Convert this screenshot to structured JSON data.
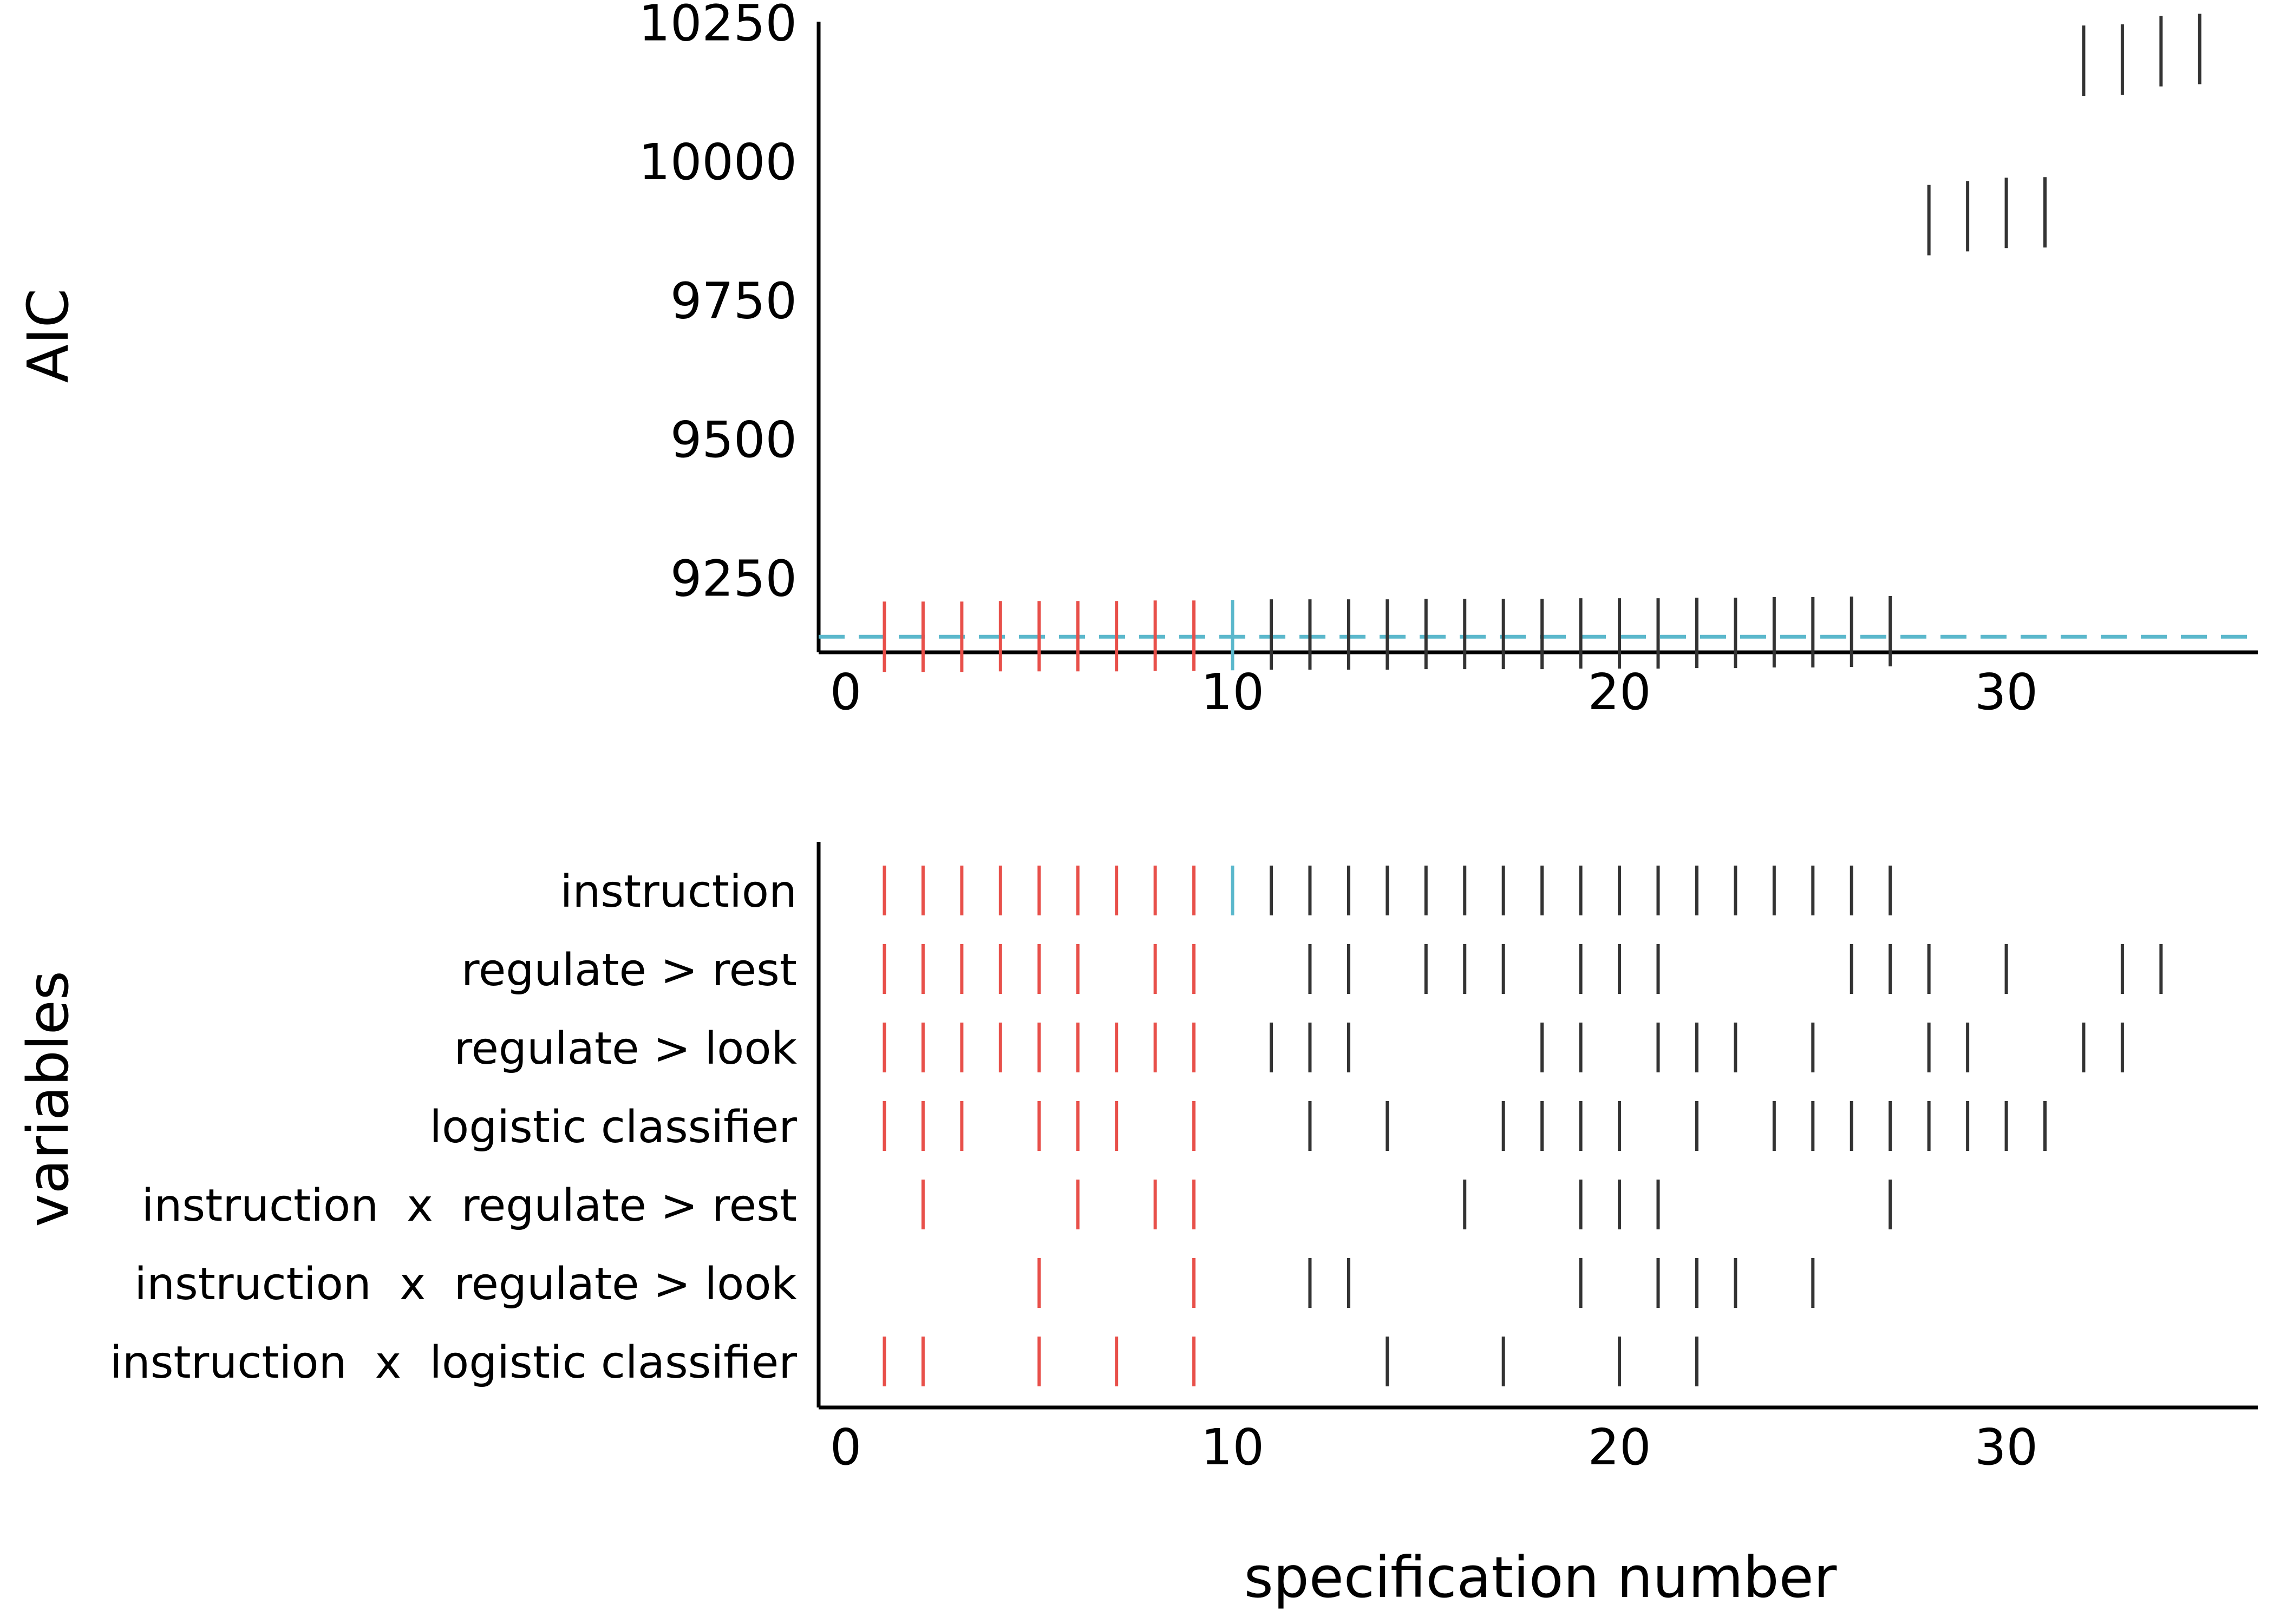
{
  "colors": {
    "red": "#e8504a",
    "blue": "#5bb8cc",
    "black": "#333333",
    "axis": "#000000"
  },
  "chart_data": [
    {
      "type": "scatter",
      "mark": "tick",
      "ylabel": "AIC",
      "xlim": [
        -0.7,
        36.5
      ],
      "ylim": [
        9115,
        10260
      ],
      "xticks": [
        "0",
        "10",
        "20",
        "30"
      ],
      "yticks": [
        "9250",
        "9500",
        "9750",
        "10000",
        "10250"
      ],
      "reference_line": {
        "y": 9143,
        "style": "dashed",
        "color": "#5bb8cc"
      },
      "points": [
        {
          "x": 1,
          "y": 9143,
          "group": "red"
        },
        {
          "x": 2,
          "y": 9143,
          "group": "red"
        },
        {
          "x": 3,
          "y": 9143,
          "group": "red"
        },
        {
          "x": 4,
          "y": 9144,
          "group": "red"
        },
        {
          "x": 5,
          "y": 9144,
          "group": "red"
        },
        {
          "x": 6,
          "y": 9144,
          "group": "red"
        },
        {
          "x": 7,
          "y": 9144,
          "group": "red"
        },
        {
          "x": 8,
          "y": 9145,
          "group": "red"
        },
        {
          "x": 9,
          "y": 9145,
          "group": "red"
        },
        {
          "x": 10,
          "y": 9146,
          "group": "blue"
        },
        {
          "x": 11,
          "y": 9147,
          "group": "black"
        },
        {
          "x": 12,
          "y": 9147,
          "group": "black"
        },
        {
          "x": 13,
          "y": 9147,
          "group": "black"
        },
        {
          "x": 14,
          "y": 9147,
          "group": "black"
        },
        {
          "x": 15,
          "y": 9148,
          "group": "black"
        },
        {
          "x": 16,
          "y": 9148,
          "group": "black"
        },
        {
          "x": 17,
          "y": 9148,
          "group": "black"
        },
        {
          "x": 18,
          "y": 9148,
          "group": "black"
        },
        {
          "x": 19,
          "y": 9149,
          "group": "black"
        },
        {
          "x": 20,
          "y": 9149,
          "group": "black"
        },
        {
          "x": 21,
          "y": 9149,
          "group": "black"
        },
        {
          "x": 22,
          "y": 9150,
          "group": "black"
        },
        {
          "x": 23,
          "y": 9150,
          "group": "black"
        },
        {
          "x": 24,
          "y": 9151,
          "group": "black"
        },
        {
          "x": 25,
          "y": 9151,
          "group": "black"
        },
        {
          "x": 26,
          "y": 9152,
          "group": "black"
        },
        {
          "x": 27,
          "y": 9153,
          "group": "black"
        },
        {
          "x": 28,
          "y": 9893,
          "group": "black"
        },
        {
          "x": 29,
          "y": 9900,
          "group": "black"
        },
        {
          "x": 30,
          "y": 9906,
          "group": "black"
        },
        {
          "x": 31,
          "y": 9907,
          "group": "black"
        },
        {
          "x": 32,
          "y": 10180,
          "group": "black"
        },
        {
          "x": 33,
          "y": 10182,
          "group": "black"
        },
        {
          "x": 34,
          "y": 10197,
          "group": "black"
        },
        {
          "x": 35,
          "y": 10201,
          "group": "black"
        }
      ]
    },
    {
      "type": "scatter",
      "mark": "tick",
      "ylabel": "variables",
      "xlabel": "specification number",
      "xlim": [
        -0.7,
        36.5
      ],
      "xticks": [
        "0",
        "10",
        "20",
        "30"
      ],
      "variables": [
        "instruction",
        "regulate > rest",
        "regulate > look",
        "logistic classifier",
        "instruction  x  regulate > rest",
        "instruction  x  regulate > look",
        "instruction  x  logistic classifier"
      ],
      "rows": [
        {
          "variable": "instruction",
          "specs": [
            1,
            2,
            3,
            4,
            5,
            6,
            7,
            8,
            9,
            10,
            11,
            12,
            13,
            14,
            15,
            16,
            17,
            18,
            19,
            20,
            21,
            22,
            23,
            24,
            25,
            26,
            27
          ]
        },
        {
          "variable": "regulate > rest",
          "specs": [
            1,
            2,
            3,
            4,
            5,
            6,
            8,
            9,
            12,
            13,
            15,
            16,
            17,
            19,
            20,
            21,
            26,
            27,
            28,
            30,
            33,
            34
          ]
        },
        {
          "variable": "regulate > look",
          "specs": [
            1,
            2,
            3,
            4,
            5,
            6,
            7,
            8,
            9,
            11,
            12,
            13,
            18,
            19,
            21,
            22,
            23,
            25,
            28,
            29,
            32,
            33
          ]
        },
        {
          "variable": "logistic classifier",
          "specs": [
            1,
            2,
            3,
            5,
            6,
            7,
            9,
            12,
            14,
            17,
            18,
            19,
            20,
            22,
            24,
            25,
            26,
            27,
            28,
            29,
            30,
            31
          ]
        },
        {
          "variable": "instruction  x  regulate > rest",
          "specs": [
            2,
            6,
            8,
            9,
            16,
            19,
            20,
            21,
            27
          ]
        },
        {
          "variable": "instruction  x  regulate > look",
          "specs": [
            5,
            9,
            12,
            13,
            19,
            21,
            22,
            23,
            25
          ]
        },
        {
          "variable": "instruction  x  logistic classifier",
          "specs": [
            1,
            2,
            5,
            7,
            9,
            14,
            17,
            20,
            22
          ]
        }
      ],
      "highlight": {
        "red_specs": [
          1,
          2,
          3,
          4,
          5,
          6,
          7,
          8,
          9
        ],
        "blue_specs": [
          10
        ]
      }
    }
  ]
}
